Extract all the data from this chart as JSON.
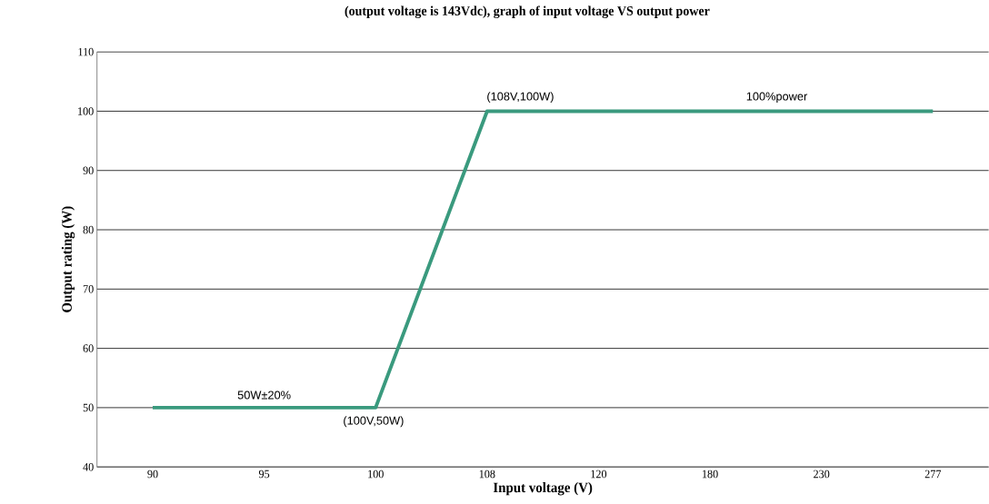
{
  "chart_data": {
    "type": "line",
    "title": "(output voltage is 143Vdc), graph of input voltage VS output power",
    "xlabel": "Input voltage (V)",
    "ylabel": "Output rating (W)",
    "categories": [
      "90",
      "95",
      "100",
      "108",
      "120",
      "180",
      "230",
      "277"
    ],
    "series": [
      {
        "color": "#3a9a7e",
        "values": [
          50,
          50,
          50,
          100,
          100,
          100,
          100,
          100
        ]
      }
    ],
    "ylim": [
      40,
      110
    ],
    "yticks": [
      40,
      50,
      60,
      70,
      80,
      90,
      100,
      110
    ],
    "grid": "y",
    "marker": "none",
    "line_style": "solid",
    "annotations": [
      {
        "text": "(108V,100W)",
        "x": "108",
        "y": 100
      },
      {
        "text": "(100V,50W)",
        "x": "100",
        "y": 50
      },
      {
        "text": "50W±20%",
        "x": "95",
        "y": 50
      },
      {
        "text": "100%power",
        "x": "230",
        "y": 100
      }
    ]
  }
}
